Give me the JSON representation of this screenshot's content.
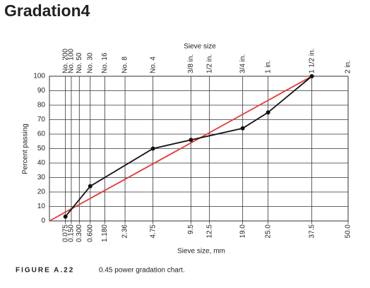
{
  "header": {
    "title": "Gradation4"
  },
  "chart_data": {
    "type": "line",
    "power": 0.45,
    "x_label": "Sieve size, mm",
    "top_label": "Sieve size",
    "y_label": "Percent passing",
    "caption_label": "FIGURE A.22",
    "caption": "0.45 power gradation chart.",
    "xlim": [
      0,
      50
    ],
    "ylim": [
      0,
      100
    ],
    "xticks": [
      0.075,
      {
        "value": 0.15,
        "label": "0.150"
      },
      {
        "value": 0.3,
        "label": "0.300"
      },
      {
        "value": 0.6,
        "label": "0.600"
      },
      {
        "value": 1.18,
        "label": "1.180"
      },
      2.36,
      4.75,
      9.5,
      12.5,
      {
        "value": 19,
        "label": "19.0"
      },
      {
        "value": 25,
        "label": "25.0"
      },
      37.5,
      {
        "value": 50,
        "label": "50.0"
      }
    ],
    "top_ticks": [
      "No. 200",
      "No. 100",
      "No. 50",
      "No. 30",
      "No. 16",
      "No. 8",
      "No. 4",
      "3/8 in.",
      "1/2 in.",
      "3/4 in.",
      "1 in.",
      "1 1/2 in.",
      "2 in."
    ],
    "yticks": [
      0,
      10,
      20,
      30,
      40,
      50,
      60,
      70,
      80,
      90,
      100
    ],
    "grid": true,
    "series": [
      {
        "color": "#e53935",
        "x": [
          0,
          37.5
        ],
        "values": [
          0,
          100
        ],
        "markers": false
      },
      {
        "color": "#111111",
        "x": [
          0.075,
          0.6,
          4.75,
          9.5,
          19,
          25,
          37.5
        ],
        "values": [
          3,
          24,
          50,
          56,
          64,
          75,
          100
        ],
        "markers": true
      }
    ]
  }
}
